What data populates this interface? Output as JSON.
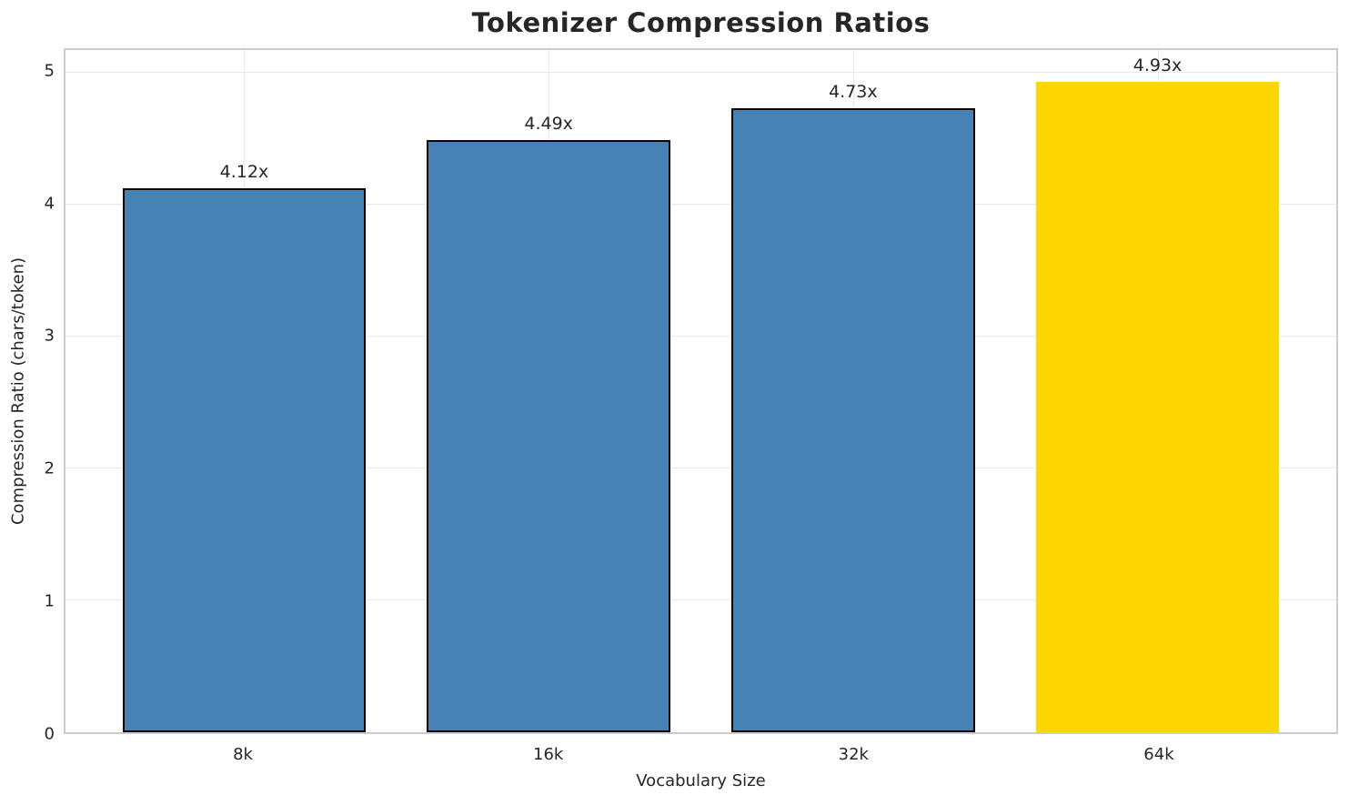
{
  "chart_data": {
    "type": "bar",
    "title": "Tokenizer Compression Ratios",
    "xlabel": "Vocabulary Size",
    "ylabel": "Compression Ratio (chars/token)",
    "categories": [
      "8k",
      "16k",
      "32k",
      "64k"
    ],
    "values": [
      4.12,
      4.49,
      4.73,
      4.93
    ],
    "bar_labels": [
      "4.12x",
      "4.49x",
      "4.73x",
      "4.93x"
    ],
    "bar_colors": [
      "#4682b4",
      "#4682b4",
      "#4682b4",
      "#ffd700"
    ],
    "bar_edge_colors": [
      "#000000",
      "#000000",
      "#000000",
      "transparent"
    ],
    "yticks": [
      "0",
      "1",
      "2",
      "3",
      "4",
      "5"
    ],
    "ytick_values": [
      0,
      1,
      2,
      3,
      4,
      5
    ],
    "ylim": [
      0,
      5.17
    ],
    "grid": true,
    "legend_position": "none",
    "colors": {
      "bar_default": "#4682b4",
      "bar_highlight": "#ffd700",
      "bar_edge": "#000000",
      "grid": "#e9e9e9",
      "spine": "#cccccc",
      "text": "#262626",
      "background": "#ffffff"
    }
  }
}
